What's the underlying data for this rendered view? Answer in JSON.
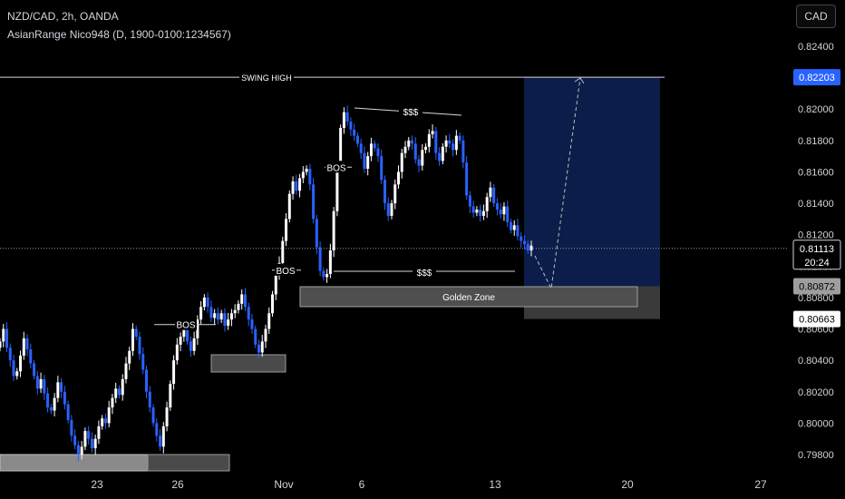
{
  "header": {
    "symbol_line": "NZD/CAD, 2h, OANDA",
    "indicator_line": "AsianRange Nico948 (D, 1900-0100:1234567)"
  },
  "currency_button": "CAD",
  "colors": {
    "background": "#000000",
    "up_candle": "#ffffff",
    "down_candle": "#2962ff",
    "target_zone": "#0d1f4d",
    "stop_zone": "#3a3a3a",
    "demand_box": "#4a4a4a",
    "price_label_blue": "#2962ff",
    "axis_text": "#d1d4dc"
  },
  "chart_data": {
    "type": "candlestick",
    "symbol": "NZD/CAD",
    "timeframe": "2h",
    "y_axis_ticks": [
      "0.82400",
      "0.82200",
      "0.82000",
      "0.81800",
      "0.81600",
      "0.81400",
      "0.81200",
      "0.81000",
      "0.80800",
      "0.80600",
      "0.80400",
      "0.80200",
      "0.80000",
      "0.79800"
    ],
    "ylim": [
      0.7975,
      0.826
    ],
    "x_axis_labels": [
      "23",
      "26",
      "Nov",
      "6",
      "13",
      "20",
      "27"
    ],
    "close_series": [
      0.8052,
      0.806,
      0.8048,
      0.804,
      0.803,
      0.8033,
      0.8043,
      0.8054,
      0.8047,
      0.8038,
      0.803,
      0.8022,
      0.8028,
      0.8019,
      0.801,
      0.8008,
      0.8016,
      0.8026,
      0.802,
      0.8012,
      0.8002,
      0.7992,
      0.7986,
      0.798,
      0.7985,
      0.7995,
      0.799,
      0.7984,
      0.799,
      0.7998,
      0.8003,
      0.8,
      0.801,
      0.8016,
      0.8022,
      0.8018,
      0.8028,
      0.8038,
      0.8046,
      0.806,
      0.8055,
      0.8044,
      0.8034,
      0.802,
      0.801,
      0.8,
      0.7992,
      0.7985,
      0.7998,
      0.801,
      0.8025,
      0.804,
      0.805,
      0.8055,
      0.8061,
      0.8052,
      0.8046,
      0.8054,
      0.8066,
      0.8074,
      0.808,
      0.8074,
      0.8067,
      0.807,
      0.8066,
      0.807,
      0.8062,
      0.8066,
      0.807,
      0.8072,
      0.8076,
      0.8082,
      0.8074,
      0.8066,
      0.806,
      0.805,
      0.8045,
      0.8052,
      0.806,
      0.807,
      0.8082,
      0.8094,
      0.8102,
      0.8116,
      0.813,
      0.8146,
      0.8154,
      0.8148,
      0.8156,
      0.816,
      0.8162,
      0.8152,
      0.813,
      0.8112,
      0.8097,
      0.8093,
      0.8095,
      0.811,
      0.8135,
      0.8162,
      0.8188,
      0.8198,
      0.8192,
      0.8187,
      0.8183,
      0.8178,
      0.8172,
      0.8162,
      0.817,
      0.8178,
      0.8175,
      0.817,
      0.8155,
      0.814,
      0.8132,
      0.814,
      0.8152,
      0.816,
      0.8172,
      0.8176,
      0.818,
      0.8178,
      0.8168,
      0.8164,
      0.8174,
      0.8176,
      0.8184,
      0.8186,
      0.8172,
      0.8167,
      0.8176,
      0.818,
      0.8178,
      0.8174,
      0.8183,
      0.818,
      0.8166,
      0.8145,
      0.8138,
      0.8134,
      0.8136,
      0.8132,
      0.8135,
      0.8144,
      0.815,
      0.814,
      0.8136,
      0.8133,
      0.8138,
      0.8128,
      0.8123,
      0.8126,
      0.8119,
      0.8116,
      0.8114,
      0.811,
      0.8113
    ],
    "current_price": "0.81113",
    "countdown": "20:24",
    "price_labels": {
      "target": "0.82203",
      "entry": "0.80872",
      "stop": "0.80663"
    },
    "annotations": {
      "swing_high": "SWING HIGH",
      "bos": "BOS",
      "liquidity": "$$$",
      "golden_zone": "Golden Zone"
    }
  }
}
